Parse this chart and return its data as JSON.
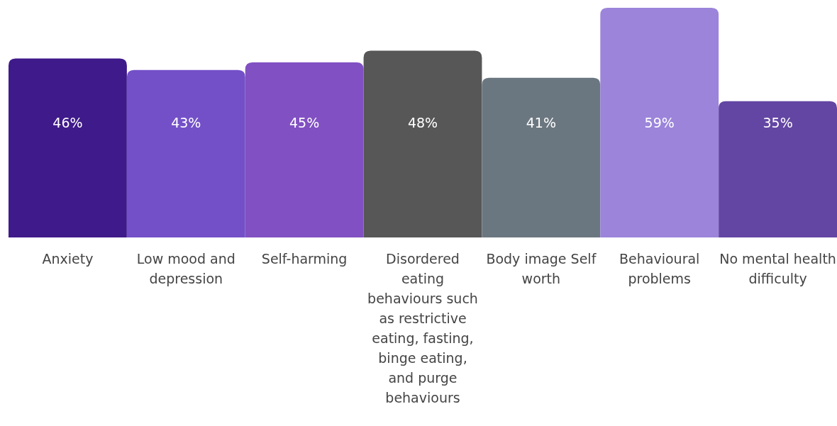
{
  "chart_data": {
    "type": "bar",
    "categories": [
      "Anxiety",
      "Low mood and depression",
      "Self-harming",
      "Disordered eating behaviours such as restrictive eating, fasting, binge eating, and purge behaviours",
      "Body image Self worth",
      "Behavioural problems",
      "No mental health difficulty"
    ],
    "values": [
      46,
      43,
      45,
      48,
      41,
      59,
      35
    ],
    "colors": [
      "#3f1a8a",
      "#7350c8",
      "#8150c2",
      "#575757",
      "#6b7780",
      "#9b84da",
      "#6346a3"
    ],
    "value_labels": [
      "46%",
      "43%",
      "45%",
      "48%",
      "41%",
      "59%",
      "35%"
    ]
  }
}
